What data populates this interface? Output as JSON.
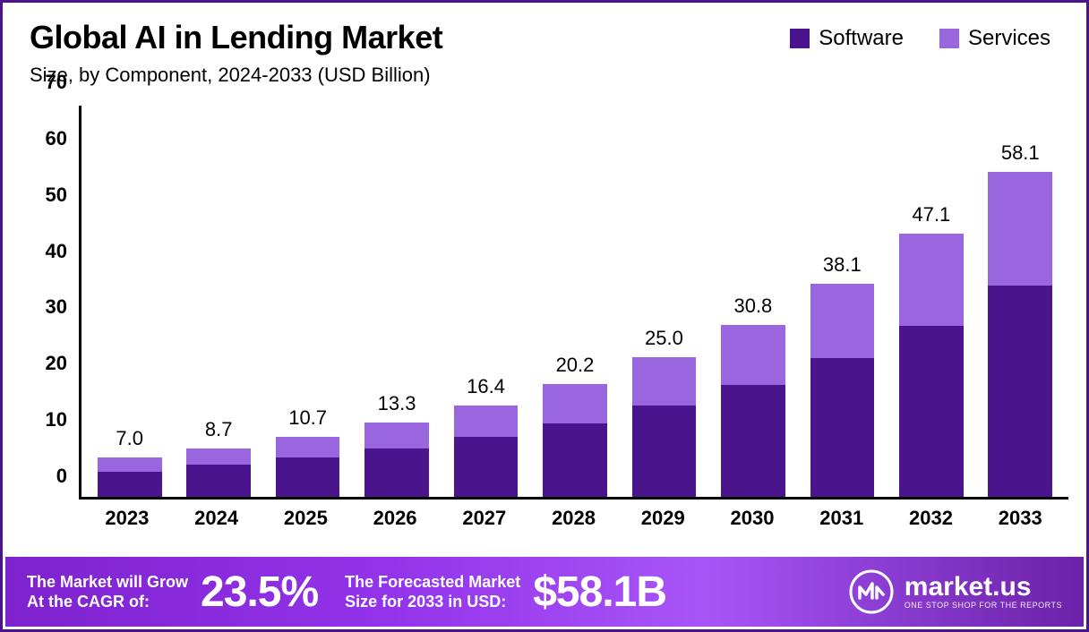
{
  "title": "Global AI in Lending Market",
  "subtitle": "Size, by Component, 2024-2033 (USD Billion)",
  "legend": {
    "software": "Software",
    "services": "Services"
  },
  "colors": {
    "software": "#4a148c",
    "services": "#9966e0",
    "border": "#4a148c",
    "footer_gradient_start": "#7e22ce",
    "footer_gradient_end": "#6b21a8",
    "text": "#000000",
    "footer_text": "#ffffff"
  },
  "chart": {
    "type": "stacked-bar",
    "ylim": [
      0,
      70
    ],
    "ytick_step": 10,
    "yticks": [
      0,
      10,
      20,
      30,
      40,
      50,
      60,
      70
    ],
    "categories": [
      "2023",
      "2024",
      "2025",
      "2026",
      "2027",
      "2028",
      "2029",
      "2030",
      "2031",
      "2032",
      "2033"
    ],
    "totals": [
      7.0,
      8.7,
      10.7,
      13.3,
      16.4,
      20.2,
      25.0,
      30.8,
      38.1,
      47.1,
      58.1
    ],
    "software": [
      4.5,
      5.7,
      7.0,
      8.6,
      10.7,
      13.1,
      16.3,
      20.0,
      24.8,
      30.6,
      37.8
    ],
    "services": [
      2.5,
      3.0,
      3.7,
      4.7,
      5.7,
      7.1,
      8.7,
      10.8,
      13.3,
      16.5,
      20.3
    ],
    "total_labels": [
      "7.0",
      "8.7",
      "10.7",
      "13.3",
      "16.4",
      "20.2",
      "25.0",
      "30.8",
      "38.1",
      "47.1",
      "58.1"
    ],
    "bar_width_pct": 72,
    "title_fontsize": 36,
    "subtitle_fontsize": 22,
    "tick_fontsize": 22,
    "label_fontsize": 22
  },
  "footer": {
    "cagr_text_line1": "The Market will Grow",
    "cagr_text_line2": "At the CAGR of:",
    "cagr_value": "23.5%",
    "forecast_text_line1": "The Forecasted Market",
    "forecast_text_line2": "Size for 2033 in USD:",
    "forecast_value": "$58.1B",
    "brand_name": "market.us",
    "brand_tagline": "ONE STOP SHOP FOR THE REPORTS"
  }
}
